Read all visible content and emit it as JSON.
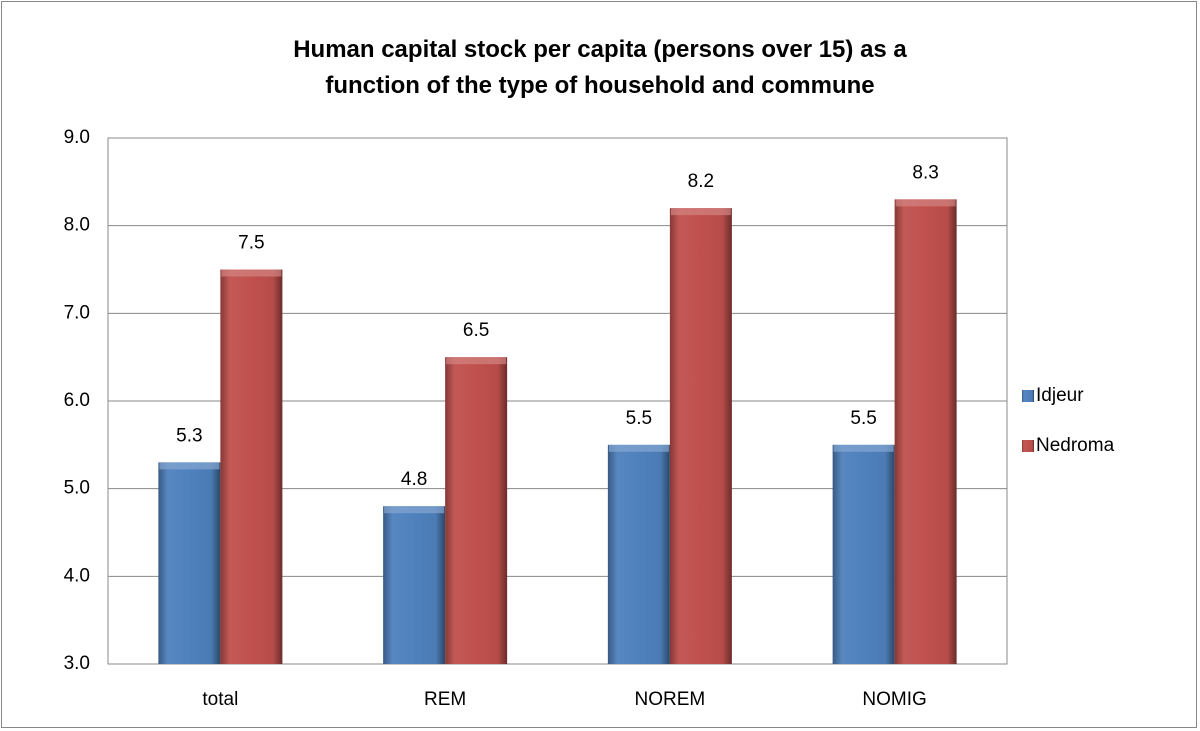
{
  "chart_data": {
    "type": "bar",
    "title": "Human capital stock per capita (persons over 15) as a function of the type of household and commune",
    "categories": [
      "total",
      "REM",
      "NOREM",
      "NOMIG"
    ],
    "series": [
      {
        "name": "Idjeur",
        "color": "#4f81bd",
        "values": [
          5.3,
          4.8,
          5.5,
          5.5
        ]
      },
      {
        "name": "Nedroma",
        "color": "#c0504d",
        "values": [
          7.5,
          6.5,
          8.2,
          8.3
        ]
      }
    ],
    "ylim": [
      3,
      9
    ],
    "yticks": [
      {
        "value": 3,
        "label": "3.0"
      },
      {
        "value": 4,
        "label": "4.0"
      },
      {
        "value": 5,
        "label": "5.0"
      },
      {
        "value": 6,
        "label": "6.0"
      },
      {
        "value": 7,
        "label": "7.0"
      },
      {
        "value": 8,
        "label": "8.0"
      },
      {
        "value": 9,
        "label": "9.0"
      }
    ],
    "grid": true,
    "legend": "right",
    "data_labels": true
  }
}
